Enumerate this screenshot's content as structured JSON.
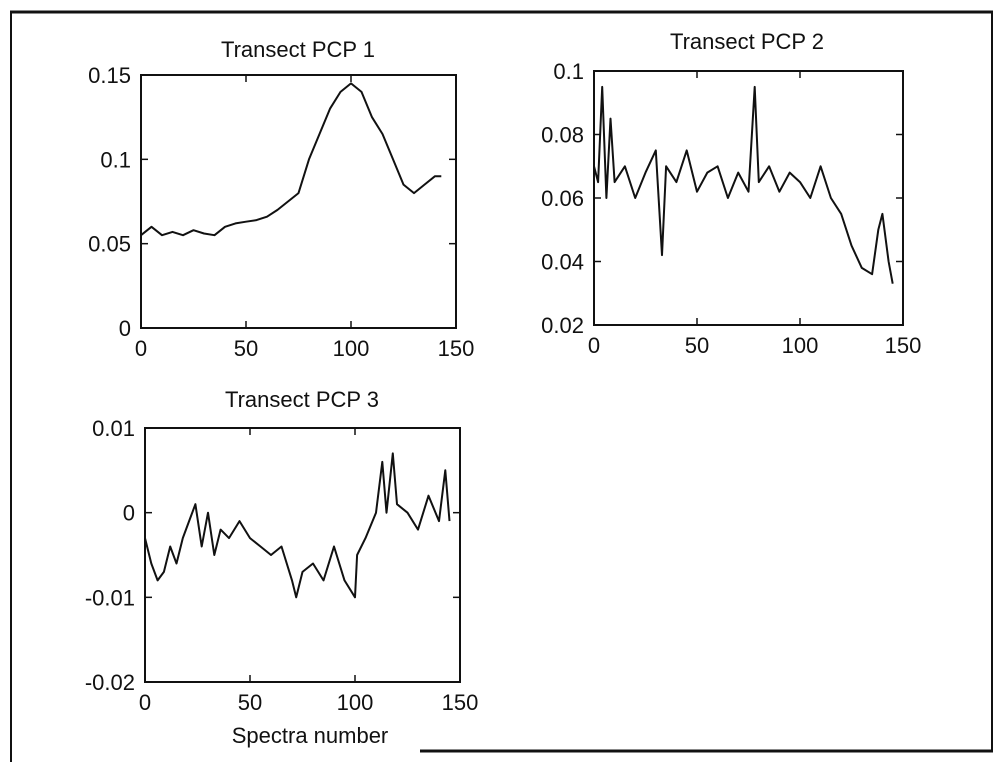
{
  "chart_data": [
    {
      "type": "line",
      "title": "Transect PCP 1",
      "xlabel": "",
      "ylabel": "",
      "xlim": [
        0,
        150
      ],
      "ylim": [
        0,
        0.15
      ],
      "xticks": [
        "0",
        "50",
        "100",
        "150"
      ],
      "yticks": [
        "0",
        "0.05",
        "0.1",
        "0.15"
      ],
      "grid": false,
      "series": [
        {
          "x": [
            0,
            5,
            10,
            15,
            20,
            25,
            30,
            35,
            40,
            45,
            50,
            55,
            60,
            65,
            70,
            75,
            80,
            85,
            90,
            95,
            100,
            105,
            110,
            115,
            120,
            125,
            130,
            135,
            140,
            143
          ],
          "y": [
            0.055,
            0.06,
            0.055,
            0.057,
            0.055,
            0.058,
            0.056,
            0.055,
            0.06,
            0.062,
            0.063,
            0.064,
            0.066,
            0.07,
            0.075,
            0.08,
            0.1,
            0.115,
            0.13,
            0.14,
            0.145,
            0.14,
            0.125,
            0.115,
            0.1,
            0.085,
            0.08,
            0.085,
            0.09,
            0.09
          ]
        }
      ]
    },
    {
      "type": "line",
      "title": "Transect PCP 2",
      "xlabel": "",
      "ylabel": "",
      "xlim": [
        0,
        150
      ],
      "ylim": [
        0.02,
        0.1
      ],
      "xticks": [
        "0",
        "50",
        "100",
        "150"
      ],
      "yticks": [
        "0.02",
        "0.04",
        "0.06",
        "0.08",
        "0.1"
      ],
      "grid": false,
      "series": [
        {
          "x": [
            0,
            2,
            4,
            6,
            8,
            10,
            15,
            20,
            25,
            30,
            33,
            35,
            40,
            45,
            50,
            55,
            60,
            65,
            70,
            75,
            78,
            80,
            85,
            90,
            95,
            100,
            105,
            110,
            115,
            120,
            125,
            130,
            135,
            138,
            140,
            143,
            145
          ],
          "y": [
            0.07,
            0.065,
            0.095,
            0.06,
            0.085,
            0.065,
            0.07,
            0.06,
            0.068,
            0.075,
            0.042,
            0.07,
            0.065,
            0.075,
            0.062,
            0.068,
            0.07,
            0.06,
            0.068,
            0.062,
            0.095,
            0.065,
            0.07,
            0.062,
            0.068,
            0.065,
            0.06,
            0.07,
            0.06,
            0.055,
            0.045,
            0.038,
            0.036,
            0.05,
            0.055,
            0.04,
            0.033
          ]
        }
      ]
    },
    {
      "type": "line",
      "title": "Transect PCP 3",
      "xlabel": "Spectra number",
      "ylabel": "",
      "xlim": [
        0,
        150
      ],
      "ylim": [
        -0.02,
        0.01
      ],
      "xticks": [
        "0",
        "50",
        "100",
        "150"
      ],
      "yticks": [
        "-0.02",
        "-0.01",
        "0",
        "0.01"
      ],
      "grid": false,
      "series": [
        {
          "x": [
            0,
            3,
            6,
            9,
            12,
            15,
            18,
            21,
            24,
            27,
            30,
            33,
            36,
            40,
            45,
            50,
            55,
            60,
            65,
            70,
            72,
            75,
            80,
            85,
            90,
            95,
            100,
            101,
            105,
            110,
            113,
            115,
            118,
            120,
            125,
            130,
            135,
            140,
            143,
            145
          ],
          "y": [
            -0.003,
            -0.006,
            -0.008,
            -0.007,
            -0.004,
            -0.006,
            -0.003,
            -0.001,
            0.001,
            -0.004,
            0.0,
            -0.005,
            -0.002,
            -0.003,
            -0.001,
            -0.003,
            -0.004,
            -0.005,
            -0.004,
            -0.008,
            -0.01,
            -0.007,
            -0.006,
            -0.008,
            -0.004,
            -0.008,
            -0.01,
            -0.005,
            -0.003,
            0.0,
            0.006,
            0.0,
            0.007,
            0.001,
            0.0,
            -0.002,
            0.002,
            -0.001,
            0.005,
            -0.001
          ]
        }
      ]
    }
  ]
}
